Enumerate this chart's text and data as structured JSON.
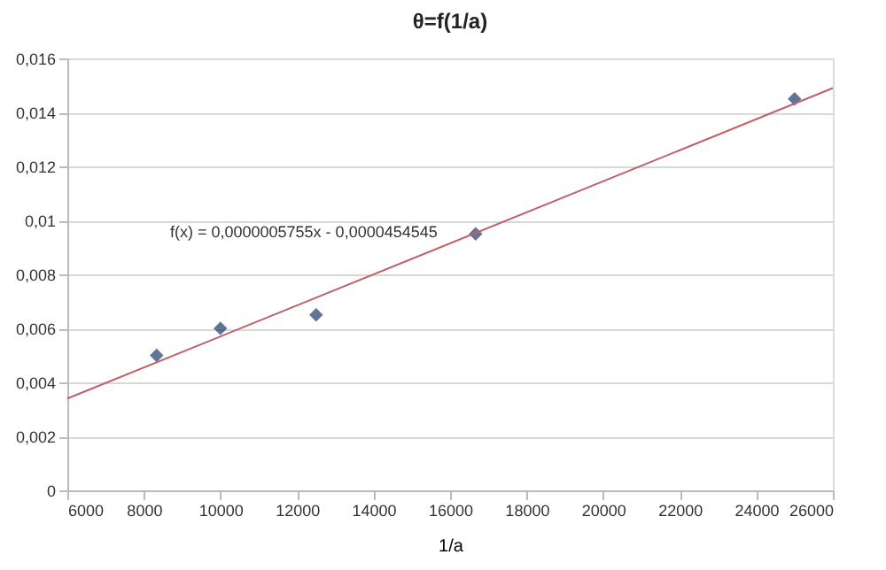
{
  "chart_data": {
    "type": "scatter",
    "title": "θ=f(1/a)",
    "xlabel": "1/a",
    "xlim": [
      6000,
      26000
    ],
    "xticks": [
      6000,
      8000,
      10000,
      12000,
      14000,
      16000,
      18000,
      20000,
      22000,
      24000,
      26000
    ],
    "ylim": [
      0,
      0.016
    ],
    "yticks": [
      {
        "value": 0,
        "label": "0"
      },
      {
        "value": 0.002,
        "label": "0,002"
      },
      {
        "value": 0.004,
        "label": "0,004"
      },
      {
        "value": 0.006,
        "label": "0,006"
      },
      {
        "value": 0.008,
        "label": "0,008"
      },
      {
        "value": 0.01,
        "label": "0,01"
      },
      {
        "value": 0.012,
        "label": "0,012"
      },
      {
        "value": 0.014,
        "label": "0,014"
      },
      {
        "value": 0.016,
        "label": "0,016"
      }
    ],
    "grid": "y",
    "series": [
      {
        "color": "#1f3a68",
        "marker": "diamond",
        "x": [
          8333,
          10000,
          12500,
          16667,
          25000
        ],
        "values": [
          0.005,
          0.006,
          0.0065,
          0.0095,
          0.0145
        ]
      },
      {
        "type": "line",
        "color": "#c0606a",
        "x": [
          6000,
          26000
        ],
        "values": [
          0.0034,
          0.0149
        ]
      }
    ],
    "annotations": [
      "f(x) = 0,0000005755x - 0,0000454545"
    ]
  }
}
